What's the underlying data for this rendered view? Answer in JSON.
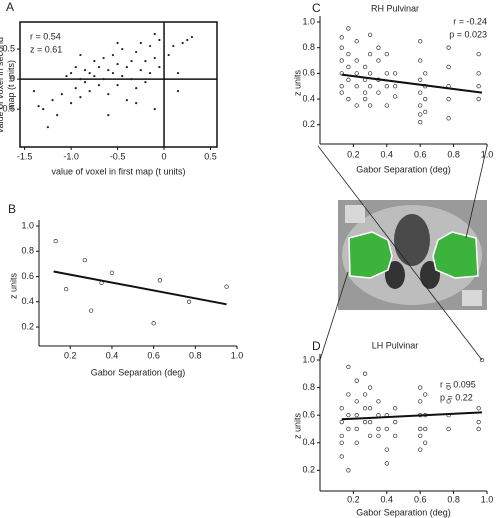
{
  "chart_data": [
    {
      "type": "scatter",
      "label": "A",
      "xlabel": "value of voxel in first map (t units)",
      "ylabel": "value of voxel in second map (t units)",
      "annotations": [
        "r = 0.54",
        "z = 0.61"
      ],
      "marker": "dot",
      "zero_lines": true,
      "xlim": [
        -1.55,
        0.57
      ],
      "ylim": [
        -1.13,
        0.95
      ],
      "xticks": [
        -1.5,
        {
          "value": -1,
          "label": "-1.0"
        },
        -0.5,
        0,
        0.5
      ],
      "yticks": [
        -0.5,
        0,
        0.5
      ],
      "x": [
        -1.3,
        -1.25,
        -1.2,
        -1.15,
        -1.1,
        -1.05,
        -1.0,
        -1.0,
        -0.95,
        -0.95,
        -0.9,
        -0.9,
        -0.85,
        -0.85,
        -0.8,
        -0.8,
        -0.75,
        -0.75,
        -0.7,
        -0.7,
        -0.65,
        -0.65,
        -0.6,
        -0.6,
        -0.55,
        -0.55,
        -0.5,
        -0.5,
        -0.45,
        -0.45,
        -0.4,
        -0.4,
        -0.35,
        -0.35,
        -0.3,
        -0.3,
        -0.25,
        -0.25,
        -0.2,
        -0.2,
        -0.15,
        -0.15,
        -0.1,
        -0.1,
        -0.05,
        -0.05,
        0.05,
        0.1,
        0.15,
        0.2,
        0.25,
        0.15,
        -1.35,
        -1.4,
        -0.6,
        -0.3,
        -0.9,
        -0.5,
        -0.1,
        0.3
      ],
      "y": [
        -0.5,
        -0.8,
        -0.35,
        -0.6,
        -0.25,
        0.05,
        -0.4,
        0.1,
        -0.15,
        0.2,
        0.0,
        -0.3,
        0.15,
        -0.05,
        0.1,
        -0.2,
        0.3,
        0.05,
        -0.1,
        0.2,
        0.0,
        0.35,
        0.15,
        -0.25,
        0.1,
        0.4,
        -0.1,
        0.25,
        0.05,
        0.5,
        0.2,
        -0.35,
        0.3,
        0.0,
        0.45,
        -0.15,
        0.15,
        0.6,
        0.3,
        -0.05,
        0.55,
        0.1,
        0.35,
        -0.5,
        0.2,
        0.65,
        0.4,
        0.55,
        -0.2,
        0.6,
        0.65,
        0.1,
        -0.45,
        -0.2,
        -0.6,
        -0.4,
        0.4,
        0.6,
        0.75,
        0.7
      ]
    },
    {
      "type": "scatter",
      "label": "B",
      "xlabel": "Gabor Separation (deg)",
      "ylabel": "z units",
      "marker": "circle",
      "xlim": [
        0.05,
        1.0
      ],
      "ylim": [
        0.05,
        1.0
      ],
      "xticks": [
        0.2,
        0.4,
        0.6,
        0.8,
        {
          "value": 1,
          "label": "1.0"
        }
      ],
      "yticks": [
        0.2,
        0.4,
        0.6,
        0.8,
        {
          "value": 1,
          "label": "1.0"
        }
      ],
      "x": [
        0.13,
        0.18,
        0.27,
        0.3,
        0.35,
        0.4,
        0.6,
        0.63,
        0.77,
        0.95
      ],
      "y": [
        0.88,
        0.5,
        0.73,
        0.33,
        0.55,
        0.63,
        0.23,
        0.57,
        0.4,
        0.52
      ],
      "fit": {
        "x": [
          0.12,
          0.95
        ],
        "y": [
          0.64,
          0.38
        ]
      }
    },
    {
      "type": "scatter",
      "label": "C",
      "title": "RH Pulvinar",
      "xlabel": "Gabor Separation (deg)",
      "ylabel": "z units",
      "annotations": [
        "r = -0.24",
        "p = 0.023"
      ],
      "marker": "circle",
      "xlim": [
        0,
        1.0
      ],
      "ylim": [
        0.05,
        1.0
      ],
      "xticks": [
        0.2,
        0.4,
        0.6,
        0.8,
        {
          "value": 1,
          "label": "1.0"
        }
      ],
      "yticks": [
        0.2,
        0.4,
        0.6,
        0.8,
        {
          "value": 1,
          "label": "1.0"
        }
      ],
      "x": [
        0.13,
        0.13,
        0.13,
        0.13,
        0.13,
        0.13,
        0.17,
        0.17,
        0.17,
        0.17,
        0.17,
        0.22,
        0.22,
        0.22,
        0.22,
        0.22,
        0.27,
        0.27,
        0.27,
        0.27,
        0.3,
        0.3,
        0.3,
        0.3,
        0.3,
        0.35,
        0.35,
        0.35,
        0.35,
        0.4,
        0.4,
        0.4,
        0.4,
        0.45,
        0.45,
        0.45,
        0.6,
        0.6,
        0.6,
        0.6,
        0.6,
        0.6,
        0.6,
        0.63,
        0.63,
        0.63,
        0.63,
        0.77,
        0.77,
        0.77,
        0.77,
        0.77,
        0.95,
        0.95,
        0.95,
        0.95
      ],
      "y": [
        0.88,
        0.8,
        0.7,
        0.6,
        0.5,
        0.45,
        0.95,
        0.75,
        0.65,
        0.55,
        0.4,
        0.85,
        0.7,
        0.6,
        0.5,
        0.35,
        0.65,
        0.55,
        0.45,
        0.4,
        0.9,
        0.75,
        0.6,
        0.5,
        0.35,
        0.8,
        0.7,
        0.55,
        0.45,
        0.75,
        0.6,
        0.5,
        0.35,
        0.6,
        0.5,
        0.42,
        0.85,
        0.7,
        0.55,
        0.45,
        0.35,
        0.28,
        0.22,
        0.6,
        0.5,
        0.4,
        0.3,
        0.8,
        0.65,
        0.5,
        0.4,
        0.25,
        0.75,
        0.6,
        0.5,
        0.4
      ],
      "fit": {
        "x": [
          0.13,
          0.97
        ],
        "y": [
          0.59,
          0.45
        ]
      }
    },
    {
      "type": "scatter",
      "label": "D",
      "title": "LH Pulvinar",
      "xlabel": "Gabor Separation (deg)",
      "ylabel": "z units",
      "annotations": [
        "r = 0.095",
        "p = 0.22"
      ],
      "marker": "circle",
      "xlim": [
        0,
        1.0
      ],
      "ylim": [
        0.05,
        1.0
      ],
      "xticks": [
        0.2,
        0.4,
        0.6,
        0.8,
        {
          "value": 1,
          "label": "1.0"
        }
      ],
      "yticks": [
        0.2,
        0.4,
        0.6,
        0.8,
        {
          "value": 1,
          "label": "1.0"
        }
      ],
      "x": [
        0.13,
        0.13,
        0.13,
        0.13,
        0.13,
        0.17,
        0.17,
        0.17,
        0.17,
        0.17,
        0.22,
        0.22,
        0.22,
        0.22,
        0.22,
        0.27,
        0.27,
        0.27,
        0.27,
        0.3,
        0.3,
        0.3,
        0.3,
        0.35,
        0.35,
        0.35,
        0.35,
        0.4,
        0.4,
        0.4,
        0.4,
        0.45,
        0.45,
        0.45,
        0.6,
        0.6,
        0.6,
        0.6,
        0.6,
        0.6,
        0.63,
        0.63,
        0.63,
        0.63,
        0.77,
        0.77,
        0.77,
        0.77,
        0.95,
        0.95,
        0.95,
        0.97
      ],
      "y": [
        0.65,
        0.55,
        0.45,
        0.4,
        0.3,
        0.95,
        0.75,
        0.6,
        0.5,
        0.2,
        0.85,
        0.7,
        0.6,
        0.5,
        0.4,
        0.9,
        0.75,
        0.65,
        0.55,
        0.8,
        0.65,
        0.55,
        0.45,
        0.7,
        0.6,
        0.5,
        0.45,
        0.6,
        0.5,
        0.35,
        0.25,
        0.65,
        0.55,
        0.45,
        0.8,
        0.7,
        0.6,
        0.5,
        0.45,
        0.35,
        0.75,
        0.6,
        0.5,
        0.4,
        0.8,
        0.7,
        0.6,
        0.5,
        0.65,
        0.55,
        0.5,
        1.0
      ],
      "fit": {
        "x": [
          0.13,
          0.97
        ],
        "y": [
          0.57,
          0.62
        ]
      }
    }
  ]
}
